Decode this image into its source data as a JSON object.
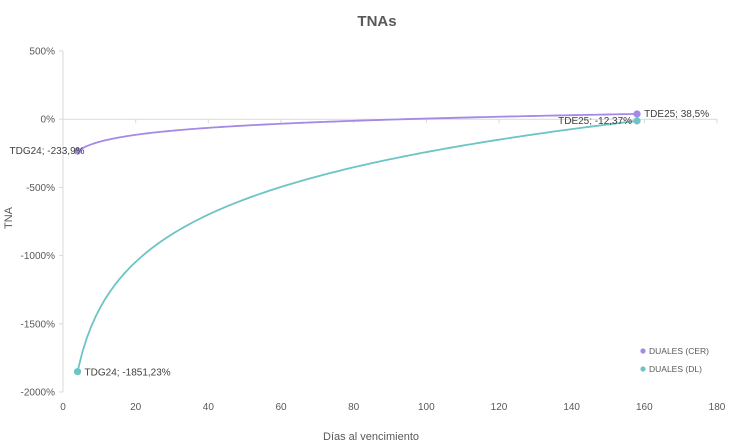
{
  "chart_data": {
    "type": "scatter",
    "title": "TNAs",
    "xlabel": "Días al vencimiento",
    "ylabel": "TNA",
    "xlim": [
      0,
      180
    ],
    "ylim": [
      -2000,
      500
    ],
    "x_ticks": [
      0,
      20,
      40,
      60,
      80,
      100,
      120,
      140,
      160,
      180
    ],
    "y_ticks": [
      500,
      0,
      -500,
      -1000,
      -1500,
      -2000
    ],
    "x_tick_labels": [
      "0",
      "20",
      "40",
      "60",
      "80",
      "100",
      "120",
      "140",
      "160",
      "180"
    ],
    "y_tick_labels": [
      "500%",
      "0%",
      "-500%",
      "-1000%",
      "-1500%",
      "-2000%"
    ],
    "grid": false,
    "legend_position": "bottom-right",
    "series": [
      {
        "name": "DUALES (CER)",
        "color": "#a48ae6",
        "points": [
          {
            "x": 4,
            "y": -233.9,
            "label": "TDG24; -233,9%"
          },
          {
            "x": 158,
            "y": 38.5,
            "label": "TDE25; 38,5%"
          }
        ],
        "trendline": "logarithmic"
      },
      {
        "name": "DUALES (DL)",
        "color": "#6cc4c4",
        "points": [
          {
            "x": 4,
            "y": -1851.23,
            "label": "TDG24; -1851,23%"
          },
          {
            "x": 158,
            "y": -12.37,
            "label": "TDE25; -12,37%"
          }
        ],
        "trendline": "logarithmic"
      }
    ]
  }
}
